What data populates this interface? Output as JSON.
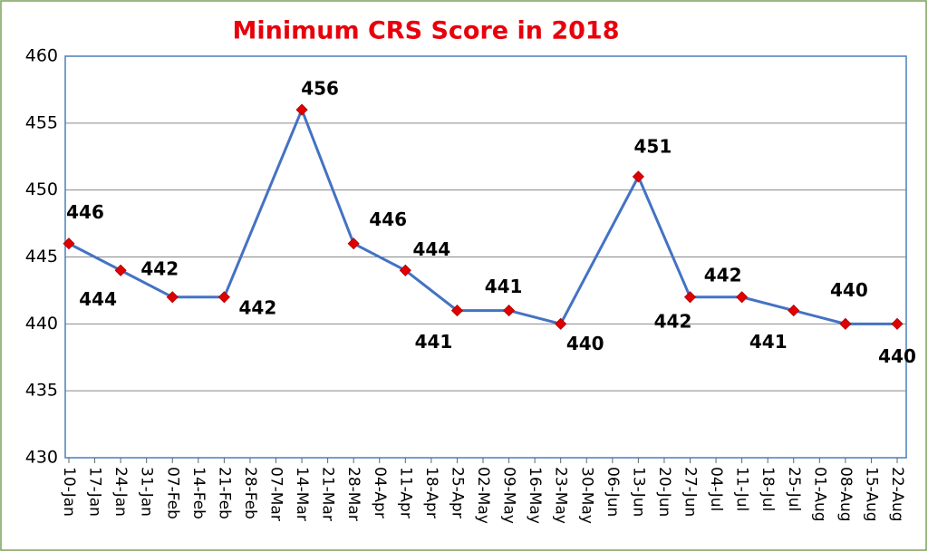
{
  "chart_data": {
    "type": "line",
    "title": "Minimum CRS Score in 2018",
    "x": [
      "10-Jan",
      "24-Jan",
      "07-Feb",
      "21-Feb",
      "14-Mar",
      "28-Mar",
      "11-Apr",
      "25-Apr",
      "09-May",
      "23-May",
      "13-Jun",
      "27-Jun",
      "11-Jul",
      "25-Jul",
      "08-Aug",
      "22-Aug"
    ],
    "series": [
      {
        "name": "Minimum CRS Score",
        "color": "#4472c4",
        "marker_color": "#e00000",
        "values": [
          446,
          444,
          442,
          442,
          456,
          446,
          444,
          441,
          441,
          440,
          451,
          442,
          442,
          441,
          440,
          440
        ]
      }
    ],
    "xticks": [
      "10-Jan",
      "17-Jan",
      "24-Jan",
      "31-Jan",
      "07-Feb",
      "14-Feb",
      "21-Feb",
      "28-Feb",
      "07-Mar",
      "14-Mar",
      "21-Mar",
      "28-Mar",
      "04-Apr",
      "11-Apr",
      "18-Apr",
      "25-Apr",
      "02-May",
      "09-May",
      "16-May",
      "23-May",
      "30-May",
      "06-Jun",
      "13-Jun",
      "20-Jun",
      "27-Jun",
      "04-Jul",
      "11-Jul",
      "18-Jul",
      "25-Jul",
      "01-Aug",
      "08-Aug",
      "15-Aug",
      "22-Aug"
    ],
    "ylim": [
      430,
      460
    ],
    "yticks": [
      430,
      435,
      440,
      445,
      450,
      455,
      460
    ],
    "grid": true
  }
}
